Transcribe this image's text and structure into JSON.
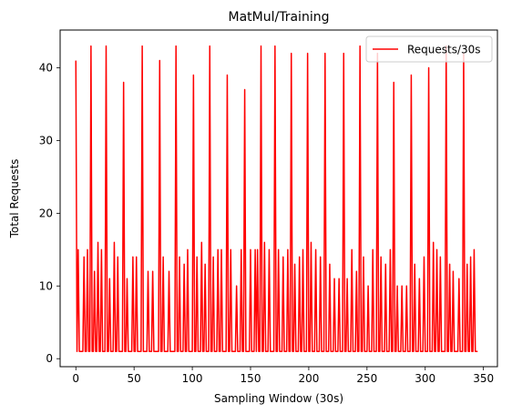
{
  "chart_data": {
    "type": "line",
    "title": "MatMul/Training",
    "xlabel": "Sampling Window (30s)",
    "ylabel": "Total Requests",
    "xlim": [
      -13.5,
      362
    ],
    "ylim": [
      -1.1,
      45.2
    ],
    "xticks": [
      0,
      50,
      100,
      150,
      200,
      250,
      300,
      350
    ],
    "yticks": [
      0,
      10,
      20,
      30,
      40
    ],
    "legend_position": "top-right",
    "series": [
      {
        "name": "Requests/30s",
        "color": "#ff0000",
        "peaks": [
          [
            0,
            41
          ],
          [
            2,
            15
          ],
          [
            7,
            14
          ],
          [
            10,
            15
          ],
          [
            13,
            43
          ],
          [
            16,
            12
          ],
          [
            19,
            16
          ],
          [
            22,
            15
          ],
          [
            26,
            43
          ],
          [
            29,
            11
          ],
          [
            33,
            16
          ],
          [
            36,
            14
          ],
          [
            41,
            38
          ],
          [
            44,
            11
          ],
          [
            49,
            14
          ],
          [
            52,
            14
          ],
          [
            57,
            43
          ],
          [
            62,
            12
          ],
          [
            66,
            12
          ],
          [
            72,
            41
          ],
          [
            75,
            14
          ],
          [
            80,
            12
          ],
          [
            86,
            43
          ],
          [
            89,
            14
          ],
          [
            93,
            13
          ],
          [
            96,
            15
          ],
          [
            101,
            39
          ],
          [
            104,
            14
          ],
          [
            108,
            16
          ],
          [
            111,
            13
          ],
          [
            115,
            43
          ],
          [
            118,
            14
          ],
          [
            122,
            15
          ],
          [
            125,
            15
          ],
          [
            130,
            39
          ],
          [
            133,
            15
          ],
          [
            138,
            10
          ],
          [
            142,
            15
          ],
          [
            145,
            37
          ],
          [
            150,
            15
          ],
          [
            154,
            15
          ],
          [
            156,
            15
          ],
          [
            159,
            43
          ],
          [
            162,
            16
          ],
          [
            166,
            15
          ],
          [
            171,
            43
          ],
          [
            174,
            15
          ],
          [
            178,
            14
          ],
          [
            182,
            15
          ],
          [
            185,
            42
          ],
          [
            188,
            13
          ],
          [
            192,
            14
          ],
          [
            195,
            15
          ],
          [
            199,
            42
          ],
          [
            202,
            16
          ],
          [
            206,
            15
          ],
          [
            210,
            14
          ],
          [
            214,
            42
          ],
          [
            218,
            13
          ],
          [
            222,
            11
          ],
          [
            226,
            11
          ],
          [
            230,
            42
          ],
          [
            233,
            11
          ],
          [
            237,
            15
          ],
          [
            241,
            12
          ],
          [
            244,
            43
          ],
          [
            247,
            14
          ],
          [
            251,
            10
          ],
          [
            255,
            15
          ],
          [
            259,
            42
          ],
          [
            262,
            14
          ],
          [
            266,
            13
          ],
          [
            270,
            15
          ],
          [
            273,
            38
          ],
          [
            276,
            10
          ],
          [
            280,
            10
          ],
          [
            284,
            10
          ],
          [
            288,
            39
          ],
          [
            291,
            13
          ],
          [
            295,
            11
          ],
          [
            299,
            14
          ],
          [
            303,
            40
          ],
          [
            307,
            16
          ],
          [
            310,
            15
          ],
          [
            313,
            14
          ],
          [
            318,
            43
          ],
          [
            321,
            13
          ],
          [
            324,
            12
          ],
          [
            329,
            11
          ],
          [
            333,
            42
          ],
          [
            336,
            13
          ],
          [
            339,
            14
          ],
          [
            342,
            15
          ],
          [
            345,
            1
          ]
        ],
        "baseline": 1
      }
    ]
  }
}
